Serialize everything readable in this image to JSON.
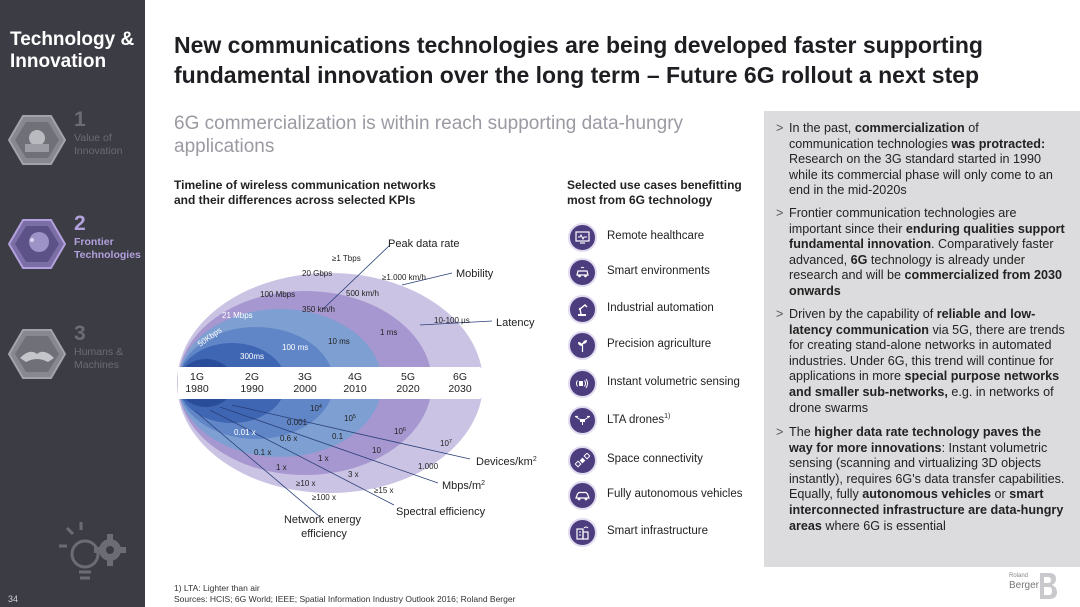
{
  "sidebar": {
    "title_line1": "Technology &",
    "title_line2": "Innovation",
    "items": [
      {
        "num": "1",
        "line1": "Value of",
        "line2": "Innovation"
      },
      {
        "num": "2",
        "line1": "Frontier",
        "line2": "Technologies"
      },
      {
        "num": "3",
        "line1": "Humans &",
        "line2": "Machines"
      }
    ],
    "page_number": "34"
  },
  "headline": {
    "line1": "New communications technologies are being developed faster supporting",
    "line2": "fundamental innovation over the long term – Future 6G rollout a next step"
  },
  "subtitle": {
    "line1": "6G commercialization is within reach supporting data-hungry",
    "line2": "applications"
  },
  "timeline": {
    "title_line1": "Timeline of wireless communication networks",
    "title_line2": "and their differences across selected KPIs",
    "generations": [
      {
        "g": "1G",
        "year": "1980"
      },
      {
        "g": "2G",
        "year": "1990"
      },
      {
        "g": "3G",
        "year": "2000"
      },
      {
        "g": "4G",
        "year": "2010"
      },
      {
        "g": "5G",
        "year": "2020"
      },
      {
        "g": "6G",
        "year": "2030"
      }
    ],
    "kpi_labels": {
      "peak": "Peak data rate",
      "mobility": "Mobility",
      "latency": "Latency",
      "devices": "Devices/km",
      "devices_sup": "2",
      "mbps": "Mbps/m",
      "mbps_sup": "2",
      "spectral": "Spectral efficiency",
      "energy_line1": "Network energy",
      "energy_line2": "efficiency"
    },
    "values": {
      "v_1tbps": "≥1 Tbps",
      "v_20gbps": "20 Gbps",
      "v_100mbps": "100 Mbps",
      "v_21mbps": "21 Mbps",
      "v_50kbps": "50Kbps",
      "v_1000kmh": "≥1.000 km/h",
      "v_500kmh": "500 km/h",
      "v_350kmh": "350 km/h",
      "v_10_100us": "10-100 μs",
      "v_1ms": "1 ms",
      "v_10ms": "10 ms",
      "v_100ms": "100 ms",
      "v_300ms": "300ms",
      "v_10e4": "10",
      "v_10e4_sup": "4",
      "v_10e5": "10",
      "v_10e5_sup": "5",
      "v_10e6": "10",
      "v_10e6_sup": "6",
      "v_10e7": "10",
      "v_10e7_sup": "7",
      "v_0001": "0.001",
      "v_01": "0.1",
      "v_10": "10",
      "v_1000": "1.000",
      "v_001x": "0.01 x",
      "v_06x": "0.6 x",
      "v_1x_a": "1 x",
      "v_01x": "0.1 x",
      "v_1x_b": "1 x",
      "v_3x": "3 x",
      "v_10x": "≥10 x",
      "v_100x": "≥100 x",
      "v_15x": "≥15 x"
    }
  },
  "usecases": {
    "title_line1": "Selected use cases benefitting",
    "title_line2": "most from 6G technology",
    "items": [
      {
        "label": "Remote healthcare",
        "icon": "monitor-heart-icon"
      },
      {
        "label": "Smart environments",
        "icon": "smart-car-icon"
      },
      {
        "label": "Industrial automation",
        "icon": "robot-arm-icon"
      },
      {
        "label": "Precision agriculture",
        "icon": "plant-icon"
      },
      {
        "label": "Instant volumetric sensing",
        "icon": "sensing-icon"
      },
      {
        "label": "LTA drones",
        "sup": "1)",
        "icon": "drone-icon"
      },
      {
        "label": "Space connectivity",
        "icon": "satellite-icon"
      },
      {
        "label": "Fully autonomous vehicles",
        "icon": "car-icon"
      },
      {
        "label": "Smart infrastructure",
        "icon": "building-icon"
      }
    ]
  },
  "panel": {
    "bullets": [
      {
        "segments": [
          {
            "t": "In the past, ",
            "b": false
          },
          {
            "t": "commercialization",
            "b": true
          },
          {
            "t": " of communication technologies ",
            "b": false
          },
          {
            "t": "was protracted:",
            "b": true
          },
          {
            "t": " Research on the 3G standard started in 1990 while its commercial phase will only come to an end in the mid-2020s",
            "b": false
          }
        ]
      },
      {
        "segments": [
          {
            "t": "Frontier communication technologies are important since their ",
            "b": false
          },
          {
            "t": "enduring qualities support fundamental innovation",
            "b": true
          },
          {
            "t": ". Comparatively faster advanced, ",
            "b": false
          },
          {
            "t": "6G",
            "b": true
          },
          {
            "t": " technology is already under research and will be ",
            "b": false
          },
          {
            "t": "commercialized from 2030 onwards",
            "b": true
          }
        ]
      },
      {
        "segments": [
          {
            "t": "Driven by the capability of ",
            "b": false
          },
          {
            "t": "reliable and low-latency communication",
            "b": true
          },
          {
            "t": " via 5G, there are trends for creating stand-alone networks in automated industries. Under 6G, this trend will continue for applications in more ",
            "b": false
          },
          {
            "t": "special purpose networks and smaller sub-networks,",
            "b": true
          },
          {
            "t": " e.g. in networks of drone swarms",
            "b": false
          }
        ]
      },
      {
        "segments": [
          {
            "t": "The ",
            "b": false
          },
          {
            "t": "higher data rate technology paves the way for more innovations",
            "b": true
          },
          {
            "t": ": Instant volumetric sensing (scanning and virtualizing 3D objects instantly), requires 6G's data transfer capabilities. Equally, fully ",
            "b": false
          },
          {
            "t": "autonomous vehicles",
            "b": true
          },
          {
            "t": " or ",
            "b": false
          },
          {
            "t": "smart interconnected infrastructure are data-hungry areas",
            "b": true
          },
          {
            "t": " where 6G is essential",
            "b": false
          }
        ]
      }
    ]
  },
  "footnote": {
    "line1": "1) LTA: Lighter than air",
    "line2": "Sources: HCIS; 6G World; IEEE; Spatial Information Industry Outlook 2016; Roland Berger"
  },
  "logo": {
    "line1": "Roland",
    "line2": "Berger"
  },
  "colors": {
    "sidebar_bg": "#3b3c44",
    "active_accent": "#b3a1dd",
    "icon_bg": "#4b3d7e",
    "panel_bg": "#dcdcde"
  }
}
